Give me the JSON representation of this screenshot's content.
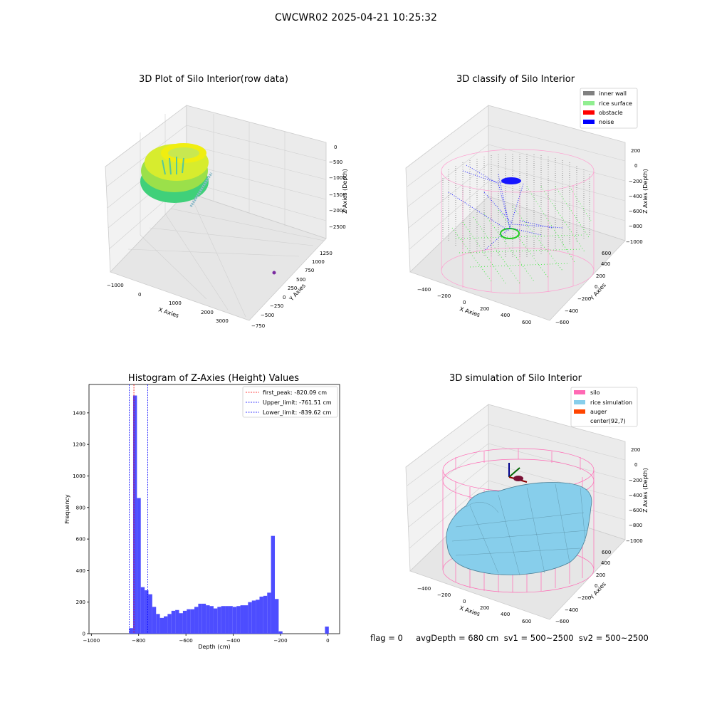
{
  "figure": {
    "title": "CWCWR02 2025-04-21 10:25:32",
    "footer": "flag = 0     avgDepth = 680 cm  sv1 = 500~2500  sv2 = 500~2500"
  },
  "colors": {
    "hist_bar": "#4d4dff",
    "first_peak": "#ff0000",
    "limit_line": "#0000ff",
    "inner_wall": "#808080",
    "rice_surface": "#90ee90",
    "obstacle": "#ff0000",
    "noise": "#0000ff",
    "silo": "#ff69b4",
    "rice_simulation": "#87ceeb",
    "auger": "#ff4500"
  },
  "chart_data": [
    {
      "type": "scatter",
      "title": "3D Plot of Silo Interior(row data)",
      "xlabel": "X Axies",
      "ylabel": "Y Axies",
      "zlabel": "Z Axies (Depth)",
      "x_ticks": [
        "−1000",
        "0",
        "1000",
        "2000",
        "3000"
      ],
      "y_ticks": [
        "−750",
        "−500",
        "−250",
        "0",
        "250",
        "500",
        "750",
        "1000",
        "1250"
      ],
      "z_ticks": [
        "0",
        "−500",
        "−1000",
        "−1500",
        "−2000",
        "−2500"
      ]
    },
    {
      "type": "scatter",
      "title": "3D classify of Silo Interior",
      "xlabel": "X Axies",
      "ylabel": "Y Axies",
      "zlabel": "Z Axies (Depth)",
      "x_ticks": [
        "−400",
        "−200",
        "0",
        "200",
        "400",
        "600"
      ],
      "y_ticks": [
        "−600",
        "−400",
        "−200",
        "0",
        "200",
        "400",
        "600"
      ],
      "z_ticks": [
        "200",
        "0",
        "−200",
        "−400",
        "−600",
        "−800",
        "−1000"
      ],
      "legend": [
        "inner wall",
        "rice surface",
        "obstacle",
        "noise"
      ],
      "legend_position": "top-right"
    },
    {
      "type": "bar",
      "title": "Histogram of Z-Axies (Height) Values",
      "xlabel": "Depth (cm)",
      "ylabel": "Frequency",
      "xlim": [
        -1010,
        50
      ],
      "ylim": [
        0,
        1580
      ],
      "x_ticks": [
        -1000,
        -800,
        -600,
        -400,
        -200,
        0
      ],
      "x_tick_labels": [
        "−1000",
        "−800",
        "−600",
        "−400",
        "−200",
        "0"
      ],
      "y_ticks": [
        0,
        200,
        400,
        600,
        800,
        1000,
        1200,
        1400
      ],
      "bin_width": 16.2,
      "bins": [
        [
          -839.6,
          35
        ],
        [
          -823.4,
          1510
        ],
        [
          -807.2,
          860
        ],
        [
          -791.0,
          295
        ],
        [
          -774.8,
          275
        ],
        [
          -758.6,
          250
        ],
        [
          -742.4,
          170
        ],
        [
          -726.2,
          125
        ],
        [
          -710.0,
          100
        ],
        [
          -693.8,
          110
        ],
        [
          -677.6,
          125
        ],
        [
          -661.4,
          145
        ],
        [
          -645.2,
          150
        ],
        [
          -629.0,
          130
        ],
        [
          -612.8,
          145
        ],
        [
          -596.6,
          155
        ],
        [
          -580.4,
          155
        ],
        [
          -564.2,
          170
        ],
        [
          -548.0,
          190
        ],
        [
          -531.8,
          190
        ],
        [
          -515.6,
          180
        ],
        [
          -499.4,
          175
        ],
        [
          -483.2,
          160
        ],
        [
          -467.0,
          170
        ],
        [
          -450.8,
          175
        ],
        [
          -434.6,
          175
        ],
        [
          -418.4,
          175
        ],
        [
          -402.2,
          170
        ],
        [
          -386.0,
          175
        ],
        [
          -369.8,
          180
        ],
        [
          -353.6,
          180
        ],
        [
          -337.4,
          200
        ],
        [
          -321.2,
          210
        ],
        [
          -305.0,
          215
        ],
        [
          -288.8,
          235
        ],
        [
          -272.6,
          240
        ],
        [
          -256.4,
          260
        ],
        [
          -240.2,
          620
        ],
        [
          -224.0,
          220
        ],
        [
          -207.8,
          15
        ],
        [
          -12.0,
          45
        ]
      ],
      "lines": [
        {
          "label": "first_peak: -820.09 cm",
          "x": -820.09,
          "color": "#ff0000"
        },
        {
          "label": "Upper_limit: -761.51 cm",
          "x": -761.51,
          "color": "#0000ff"
        },
        {
          "label": "Lower_limit: -839.62 cm",
          "x": -839.62,
          "color": "#0000ff"
        }
      ],
      "legend_position": "top-right"
    },
    {
      "type": "scatter",
      "title": "3D simulation of Silo Interior",
      "xlabel": "X Axies",
      "ylabel": "Y Axies",
      "zlabel": "Z Axies (Depth)",
      "x_ticks": [
        "−400",
        "−200",
        "0",
        "200",
        "400",
        "600"
      ],
      "y_ticks": [
        "−600",
        "−400",
        "−200",
        "0",
        "200",
        "400",
        "600"
      ],
      "z_ticks": [
        "200",
        "0",
        "−200",
        "−400",
        "−600",
        "−800",
        "−1000"
      ],
      "legend": [
        "silo",
        "rice simulation",
        "auger",
        "center(92,7)"
      ],
      "legend_position": "top-right"
    }
  ]
}
